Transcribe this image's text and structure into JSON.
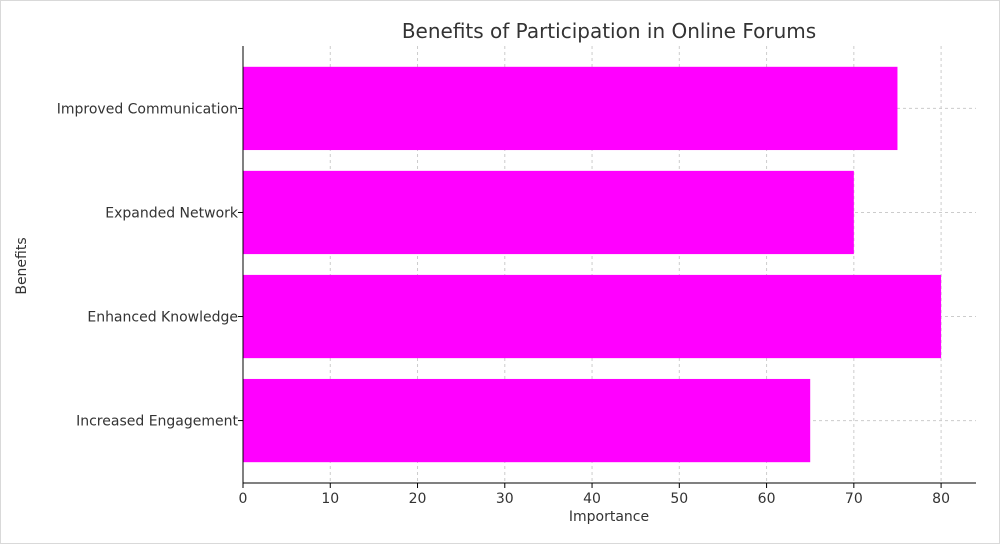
{
  "chart_data": {
    "type": "bar",
    "orientation": "horizontal",
    "title": "Benefits of Participation in Online Forums",
    "xlabel": "Importance",
    "ylabel": "Benefits",
    "categories": [
      "Increased Engagement",
      "Enhanced Knowledge",
      "Expanded Network",
      "Improved Communication"
    ],
    "values": [
      65,
      80,
      70,
      75
    ],
    "xlim": [
      0,
      84
    ],
    "xticks": [
      0,
      10,
      20,
      30,
      40,
      50,
      60,
      70,
      80
    ],
    "grid": true,
    "colors": {
      "bar": "#ff00ff",
      "grid": "#cccccc",
      "axis": "#000000"
    }
  }
}
